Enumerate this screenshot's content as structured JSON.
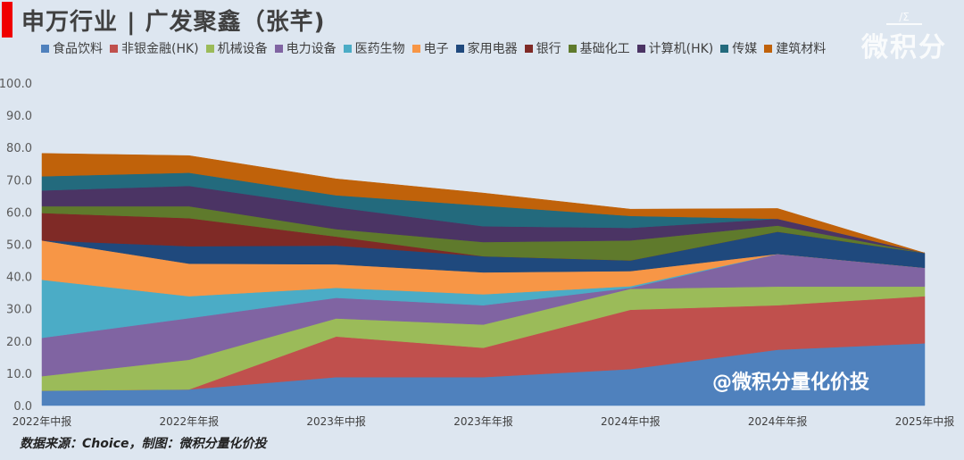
{
  "header": {
    "title": "申万行业 | 广发聚鑫（张芊)"
  },
  "logo": {
    "text": "微积分"
  },
  "watermark": "@微积分量化价投",
  "footer": "数据来源：Choice，制图：微积分量化价投",
  "chart_data": {
    "type": "area",
    "stacked": true,
    "categories": [
      "2022年中报",
      "2022年年报",
      "2023年中报",
      "2023年年报",
      "2024年中报",
      "2024年年报",
      "2025年中报"
    ],
    "ylim": [
      0,
      100
    ],
    "yticks": [
      "0.0",
      "10.0",
      "20.0",
      "30.0",
      "40.0",
      "50.0",
      "60.0",
      "70.0",
      "80.0",
      "90.0",
      "100.0"
    ],
    "grid": false,
    "legend_position": "top",
    "series": [
      {
        "name": "食品饮料",
        "color": "#4f81bd",
        "values": [
          4.6,
          5.0,
          8.8,
          8.8,
          11.3,
          17.3,
          19.3
        ]
      },
      {
        "name": "非银金融(HK)",
        "color": "#c0504d",
        "values": [
          0,
          0,
          12.6,
          9.1,
          18.4,
          13.8,
          14.6
        ]
      },
      {
        "name": "机械设备",
        "color": "#9bbb59",
        "values": [
          4.5,
          9.2,
          5.6,
          7.2,
          6.5,
          5.8,
          3.0
        ]
      },
      {
        "name": "电力设备",
        "color": "#8064a2",
        "values": [
          11.9,
          12.9,
          6.4,
          6.0,
          0.3,
          10.1,
          5.8
        ]
      },
      {
        "name": "医药生物",
        "color": "#4bacc6",
        "values": [
          18.0,
          6.8,
          3.1,
          3.4,
          0.5,
          0,
          0
        ]
      },
      {
        "name": "电子",
        "color": "#f79646",
        "values": [
          12.2,
          10.1,
          7.3,
          6.8,
          4.7,
          0,
          0
        ]
      },
      {
        "name": "家用电器",
        "color": "#1f497d",
        "values": [
          0,
          5.4,
          5.8,
          5.0,
          3.3,
          6.9,
          4.6
        ]
      },
      {
        "name": "银行",
        "color": "#7f2a26",
        "values": [
          8.5,
          8.7,
          2.8,
          0,
          0,
          0,
          0
        ]
      },
      {
        "name": "基础化工",
        "color": "#5f7a2c",
        "values": [
          2.1,
          3.7,
          2.3,
          4.4,
          6.2,
          1.9,
          0
        ]
      },
      {
        "name": "计算机(HK)",
        "color": "#4b3464",
        "values": [
          4.9,
          6.3,
          6.8,
          4.9,
          3.9,
          2.1,
          0
        ]
      },
      {
        "name": "传媒",
        "color": "#236a7d",
        "values": [
          4.4,
          4.1,
          3.7,
          6.4,
          3.7,
          0,
          0
        ]
      },
      {
        "name": "建筑材料",
        "color": "#c0620a",
        "values": [
          7.1,
          5.3,
          5.1,
          3.9,
          2.1,
          3.2,
          0
        ]
      }
    ]
  }
}
